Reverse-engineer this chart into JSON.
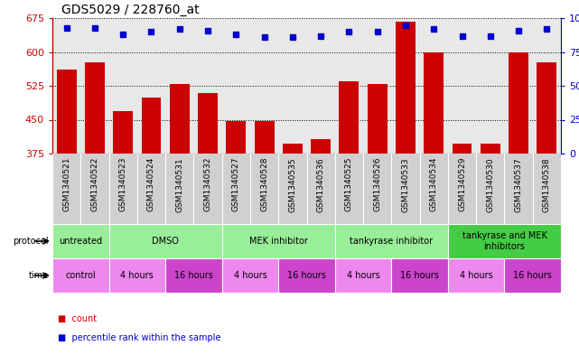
{
  "title": "GDS5029 / 228760_at",
  "samples": [
    "GSM1340521",
    "GSM1340522",
    "GSM1340523",
    "GSM1340524",
    "GSM1340531",
    "GSM1340532",
    "GSM1340527",
    "GSM1340528",
    "GSM1340535",
    "GSM1340536",
    "GSM1340525",
    "GSM1340526",
    "GSM1340533",
    "GSM1340534",
    "GSM1340529",
    "GSM1340530",
    "GSM1340537",
    "GSM1340538"
  ],
  "counts": [
    562,
    578,
    470,
    500,
    530,
    510,
    448,
    448,
    398,
    408,
    535,
    530,
    668,
    600,
    398,
    398,
    600,
    578
  ],
  "percentiles": [
    93,
    93,
    88,
    90,
    92,
    91,
    88,
    86,
    86,
    87,
    90,
    90,
    95,
    92,
    87,
    87,
    91,
    92
  ],
  "ylim_left": [
    375,
    675
  ],
  "yticks_left": [
    375,
    450,
    525,
    600,
    675
  ],
  "yticks_right": [
    0,
    25,
    50,
    75,
    100
  ],
  "bar_color": "#cc0000",
  "dot_color": "#0000cc",
  "xtick_bg": "#d0d0d0",
  "protocol_rows": [
    {
      "label": "untreated",
      "start": 0,
      "end": 2,
      "color": "#99ee99"
    },
    {
      "label": "DMSO",
      "start": 2,
      "end": 6,
      "color": "#99ee99"
    },
    {
      "label": "MEK inhibitor",
      "start": 6,
      "end": 10,
      "color": "#99ee99"
    },
    {
      "label": "tankyrase inhibitor",
      "start": 10,
      "end": 14,
      "color": "#99ee99"
    },
    {
      "label": "tankyrase and MEK\ninhibitors",
      "start": 14,
      "end": 18,
      "color": "#44cc44"
    }
  ],
  "time_rows": [
    {
      "label": "control",
      "start": 0,
      "end": 2,
      "color": "#ee88ee"
    },
    {
      "label": "4 hours",
      "start": 2,
      "end": 4,
      "color": "#ee88ee"
    },
    {
      "label": "16 hours",
      "start": 4,
      "end": 6,
      "color": "#cc44cc"
    },
    {
      "label": "4 hours",
      "start": 6,
      "end": 8,
      "color": "#ee88ee"
    },
    {
      "label": "16 hours",
      "start": 8,
      "end": 10,
      "color": "#cc44cc"
    },
    {
      "label": "4 hours",
      "start": 10,
      "end": 12,
      "color": "#ee88ee"
    },
    {
      "label": "16 hours",
      "start": 12,
      "end": 14,
      "color": "#cc44cc"
    },
    {
      "label": "4 hours",
      "start": 14,
      "end": 16,
      "color": "#ee88ee"
    },
    {
      "label": "16 hours",
      "start": 16,
      "end": 18,
      "color": "#cc44cc"
    }
  ],
  "legend_items": [
    {
      "label": "count",
      "color": "#cc0000"
    },
    {
      "label": "percentile rank within the sample",
      "color": "#0000cc"
    }
  ]
}
